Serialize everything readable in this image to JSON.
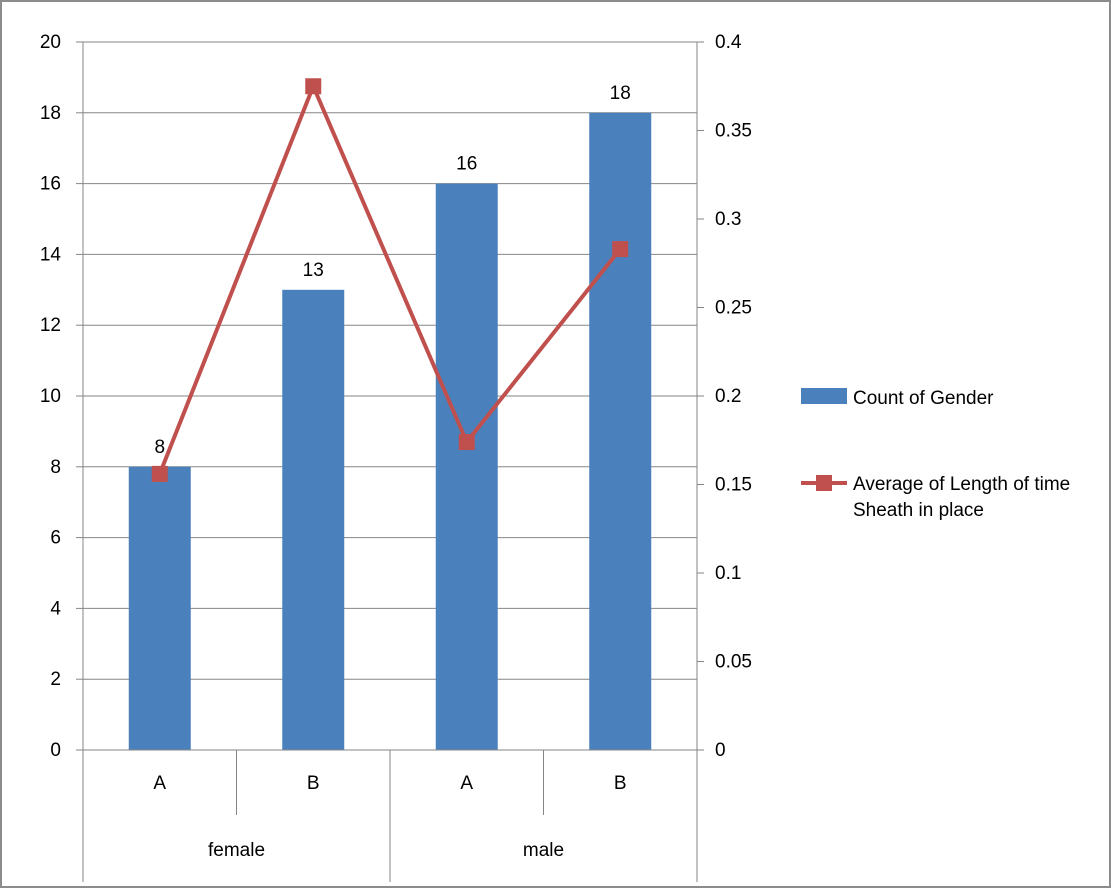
{
  "chart_data": {
    "type": "bar",
    "title": "",
    "categories": [
      {
        "group": "female",
        "label": "A"
      },
      {
        "group": "female",
        "label": "B"
      },
      {
        "group": "male",
        "label": "A"
      },
      {
        "group": "male",
        "label": "B"
      }
    ],
    "groups": [
      "female",
      "male"
    ],
    "series": [
      {
        "name": "Count of Gender",
        "type": "bar",
        "axis": "primary",
        "color": "#4a81bd",
        "values": [
          8,
          13,
          16,
          18
        ],
        "data_labels": [
          "8",
          "13",
          "16",
          "18"
        ]
      },
      {
        "name": "Average of Length of time Sheath in place",
        "name_lines": [
          "Average of Length of time",
          "Sheath in place"
        ],
        "type": "line",
        "axis": "secondary",
        "color": "#c0504d",
        "marker": "square",
        "values": [
          0.156,
          0.375,
          0.174,
          0.283
        ]
      }
    ],
    "y_axis": {
      "ylim": [
        0,
        20
      ],
      "ticks": [
        "0",
        "2",
        "4",
        "6",
        "8",
        "10",
        "12",
        "14",
        "16",
        "18",
        "20"
      ]
    },
    "y2_axis": {
      "ylim": [
        0,
        0.4
      ],
      "ticks": [
        "0",
        "0.05",
        "0.1",
        "0.15",
        "0.2",
        "0.25",
        "0.3",
        "0.35",
        "0.4"
      ]
    },
    "grid": true,
    "legend_position": "right"
  }
}
